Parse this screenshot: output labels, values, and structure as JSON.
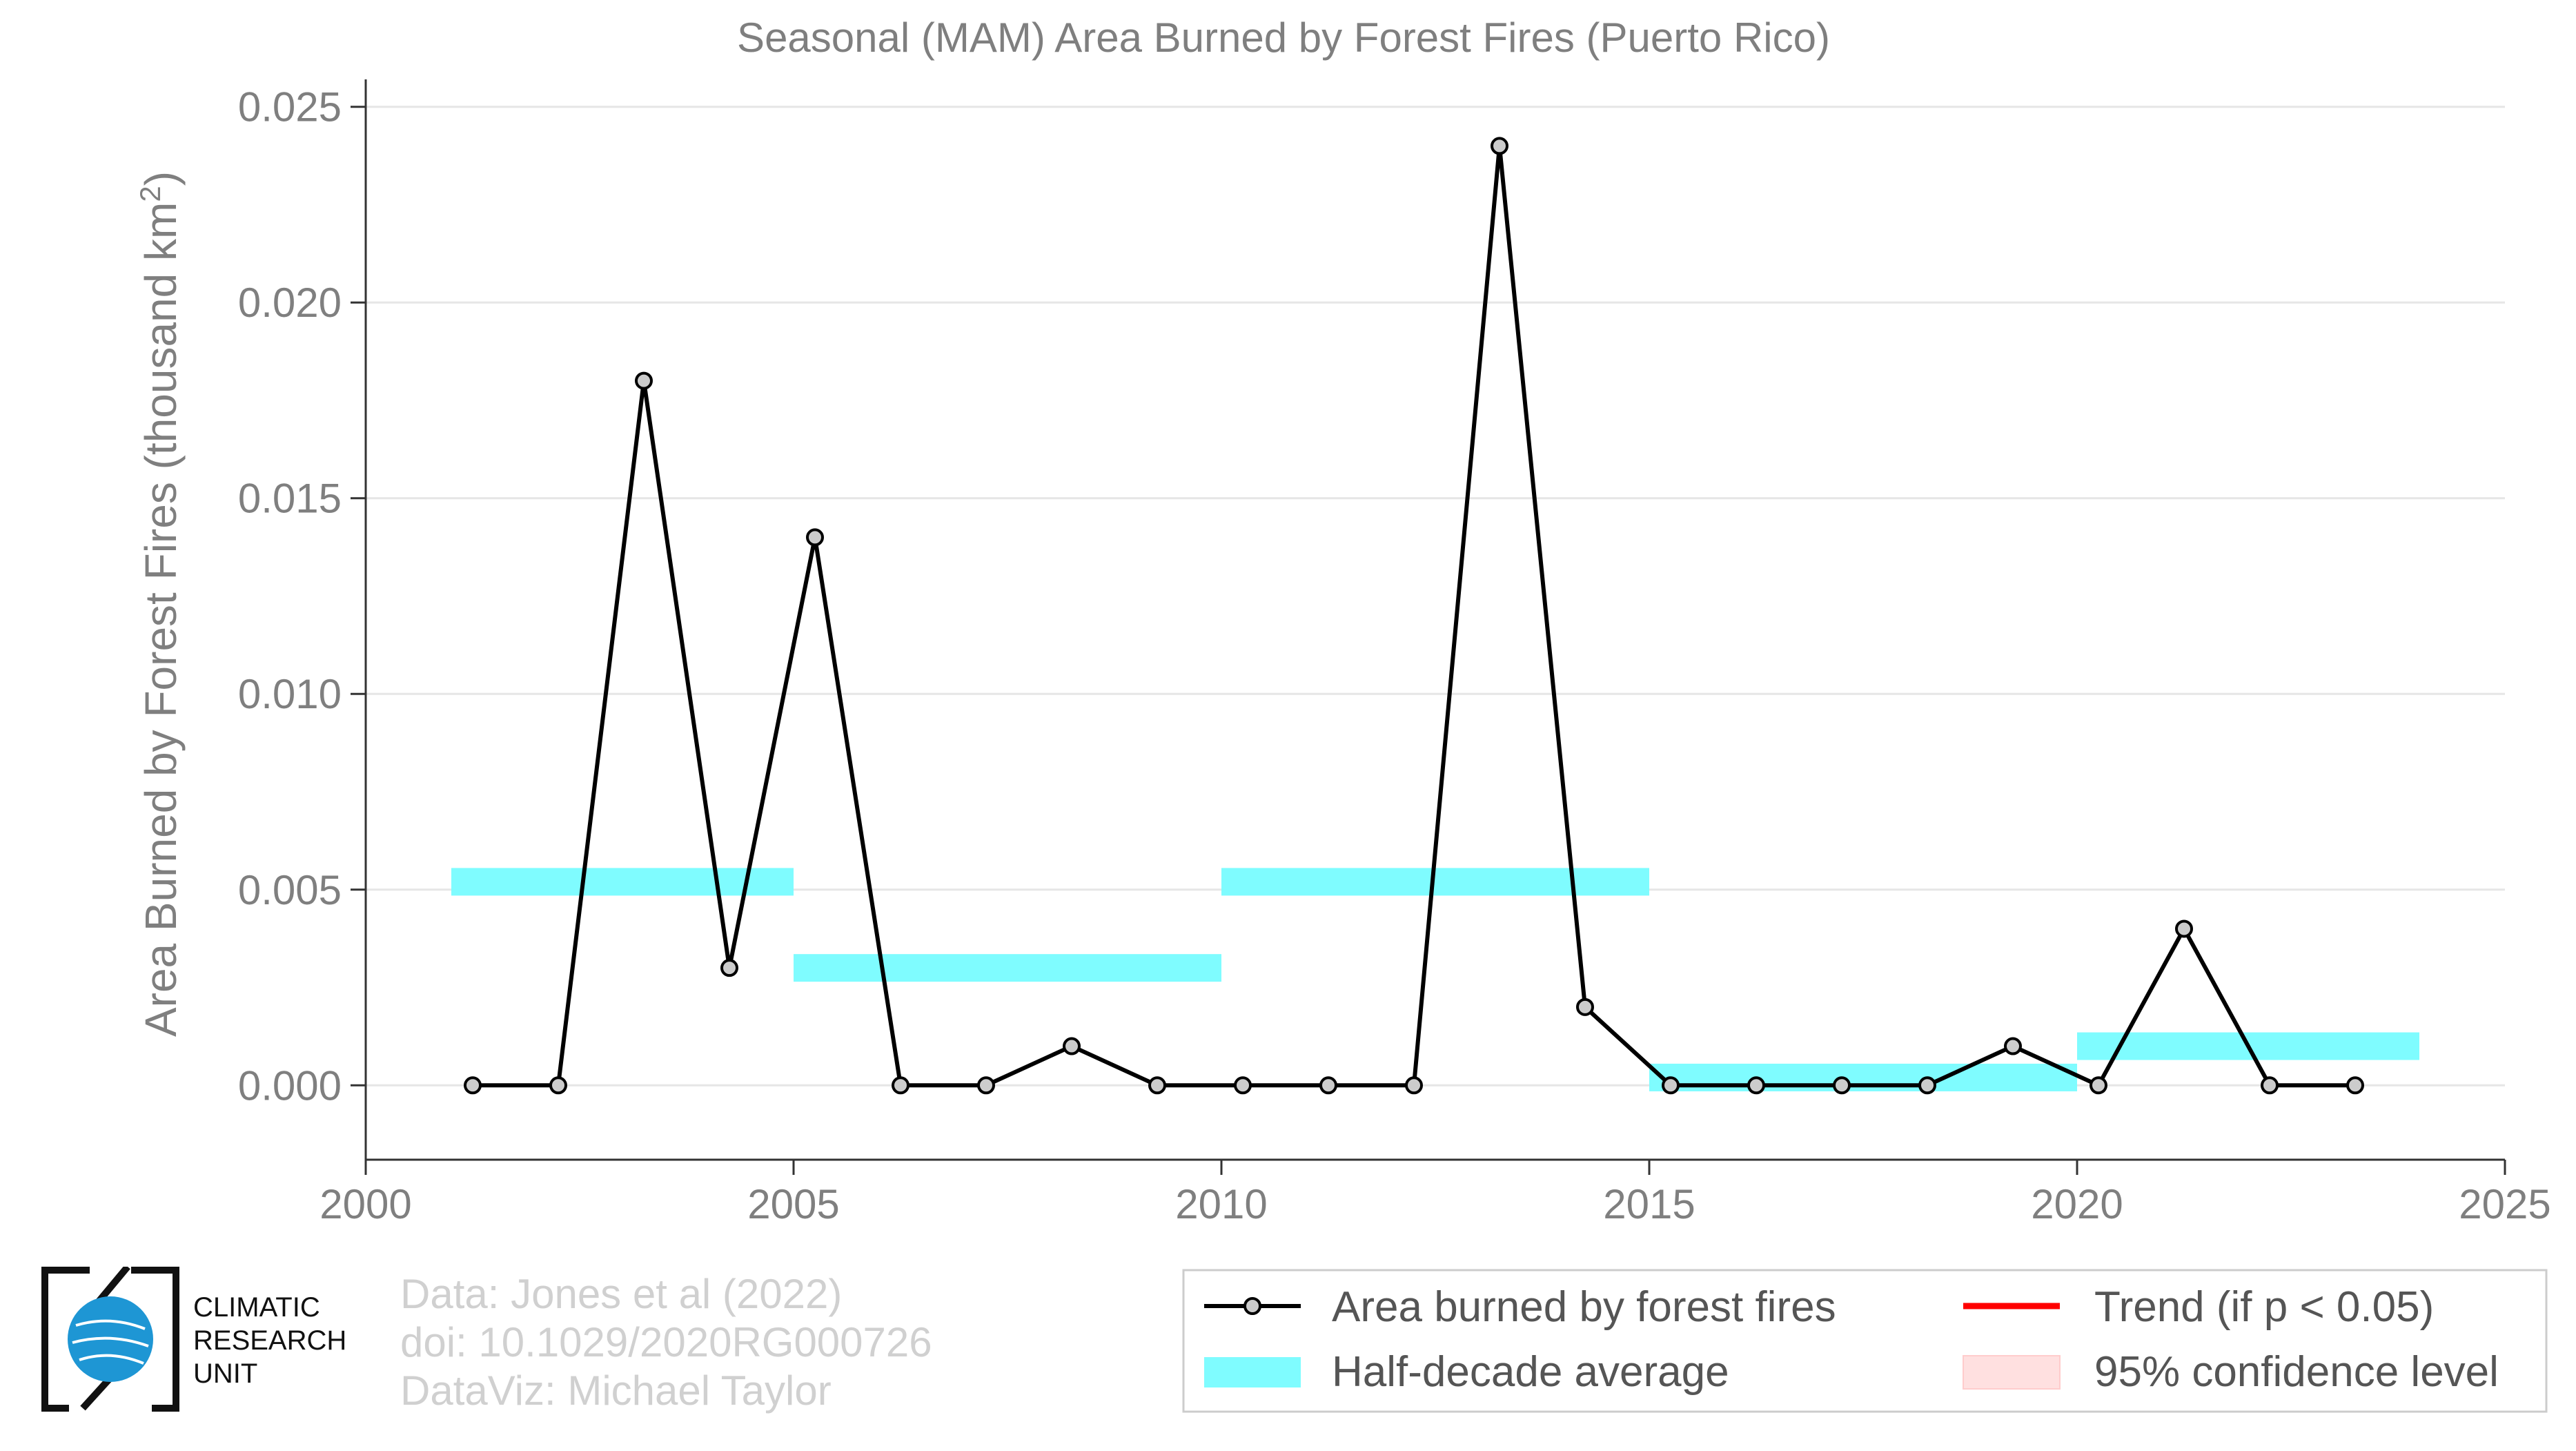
{
  "chart_data": {
    "type": "line",
    "title": "Seasonal (MAM) Area Burned by Forest Fires (Puerto Rico)",
    "xlabel": "",
    "ylabel": "Area Burned by Forest Fires (thousand km²)",
    "ylabel_main": "Area Burned by Forest Fires (thousand km",
    "ylabel_sup": "2",
    "ylabel_end": ")",
    "xlim": [
      2000,
      2025
    ],
    "ylim": [
      -0.0019,
      0.0257
    ],
    "xticks": [
      2000,
      2005,
      2010,
      2015,
      2020,
      2025
    ],
    "yticks": [
      0.0,
      0.005,
      0.01,
      0.015,
      0.02,
      0.025
    ],
    "ytick_labels": [
      "0.000",
      "0.005",
      "0.010",
      "0.015",
      "0.020",
      "0.025"
    ],
    "grid": true,
    "series": [
      {
        "name": "Area burned by forest fires",
        "color": "#000000",
        "x": [
          2001.25,
          2002.25,
          2003.25,
          2004.25,
          2005.25,
          2006.25,
          2007.25,
          2008.25,
          2009.25,
          2010.25,
          2011.25,
          2012.25,
          2013.25,
          2014.25,
          2015.25,
          2016.25,
          2017.25,
          2018.25,
          2019.25,
          2020.25,
          2021.25,
          2022.25,
          2023.25
        ],
        "y": [
          0.0,
          0.0,
          0.018,
          0.003,
          0.014,
          0.0,
          0.0,
          0.001,
          0.0,
          0.0,
          0.0,
          0.0,
          0.024,
          0.002,
          0.0,
          0.0,
          0.0,
          0.0,
          0.001,
          0.0,
          0.004,
          0.0,
          0.0
        ]
      }
    ],
    "half_decade_average": {
      "name": "Half-decade average",
      "color": "#7ffcff",
      "segments": [
        {
          "x0": 2001,
          "x1": 2005,
          "y": 0.0052
        },
        {
          "x0": 2005,
          "x1": 2010,
          "y": 0.003
        },
        {
          "x0": 2010,
          "x1": 2015,
          "y": 0.0052
        },
        {
          "x0": 2015,
          "x1": 2020,
          "y": 0.0002
        },
        {
          "x0": 2020,
          "x1": 2024,
          "y": 0.001
        }
      ]
    },
    "legend": {
      "placement": "bottom-right",
      "items": [
        {
          "label": "Area burned by forest fires",
          "kind": "line-marker",
          "color": "#000000"
        },
        {
          "label": "Trend (if p < 0.05)",
          "kind": "line",
          "color": "#ff0000"
        },
        {
          "label": "Half-decade average",
          "kind": "band",
          "color": "#7ffcff"
        },
        {
          "label": "95% confidence level",
          "kind": "band",
          "color": "#ffe0e0"
        }
      ]
    }
  },
  "credits": {
    "line1": "Data: Jones et al (2022)",
    "line2": "doi: 10.1029/2020RG000726",
    "line3": "DataViz: Michael Taylor"
  },
  "logo": {
    "line1": "CLIMATIC",
    "line2": "RESEARCH",
    "line3": "UNIT"
  }
}
